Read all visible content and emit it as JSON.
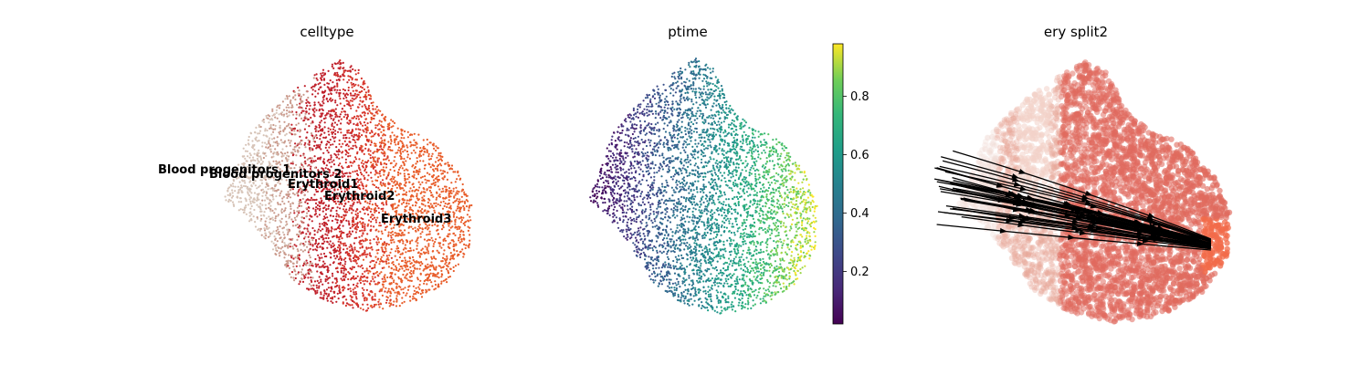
{
  "figure": {
    "panels": [
      {
        "title": "celltype",
        "type": "scatter",
        "cluster_labels": [
          "Blood progenitors 1",
          "Blood progenitors 2",
          "Erythroid1",
          "Erythroid2",
          "Erythroid3"
        ],
        "cluster_colors": [
          "#d7c4b8",
          "#ca9a8c",
          "#c0202a",
          "#d6342a",
          "#e85d2a"
        ]
      },
      {
        "title": "ptime",
        "type": "scatter",
        "colormap": "viridis",
        "colorbar": {
          "range": [
            0.02,
            0.98
          ],
          "ticks": [
            "0.2",
            "0.4",
            "0.6",
            "0.8"
          ],
          "tick_values": [
            0.2,
            0.4,
            0.6,
            0.8
          ]
        }
      },
      {
        "title": "ery split2",
        "type": "streamplot",
        "colors": [
          "#f0ddd6",
          "#e06a5e",
          "#f26b4a"
        ]
      }
    ]
  },
  "chart_data": [
    {
      "type": "scatter",
      "title": "celltype",
      "series": [
        {
          "name": "Blood progenitors 1",
          "color": "#d7c4b8"
        },
        {
          "name": "Blood progenitors 2",
          "color": "#ca9a8c"
        },
        {
          "name": "Erythroid1",
          "color": "#c0202a"
        },
        {
          "name": "Erythroid2",
          "color": "#d6342a"
        },
        {
          "name": "Erythroid3",
          "color": "#e85d2a"
        }
      ]
    },
    {
      "type": "scatter",
      "title": "ptime",
      "color_scale": "viridis",
      "colorbar_range": [
        0.02,
        0.98
      ],
      "colorbar_ticks": [
        0.2,
        0.4,
        0.6,
        0.8
      ]
    },
    {
      "type": "streamplot",
      "title": "ery split2"
    }
  ]
}
